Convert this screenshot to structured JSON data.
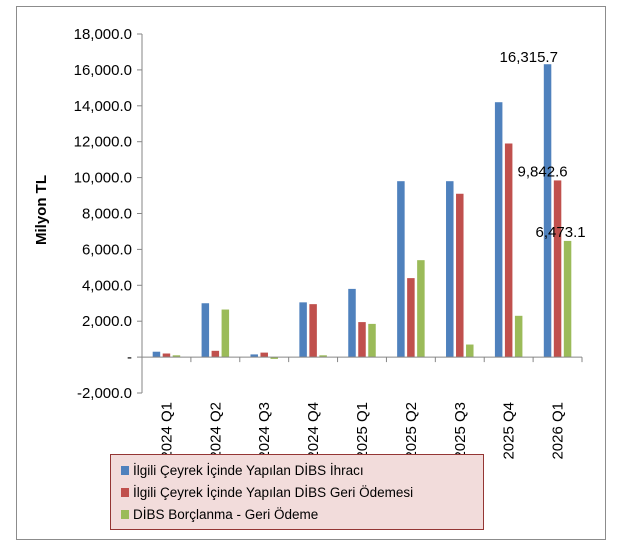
{
  "chart_data": {
    "type": "bar",
    "ylabel": "Milyon TL",
    "ylim": [
      -2000,
      18000
    ],
    "y_ticks": [
      "-2,000.0",
      "-",
      "2,000.0",
      "4,000.0",
      "6,000.0",
      "8,000.0",
      "10,000.0",
      "12,000.0",
      "14,000.0",
      "16,000.0",
      "18,000.0"
    ],
    "categories": [
      "2024 Q1",
      "2024 Q2",
      "2024 Q3",
      "2024 Q4",
      "2025 Q1",
      "2025 Q2",
      "2025 Q3",
      "2025 Q4",
      "2026 Q1"
    ],
    "series": [
      {
        "name": "İlgili Çeyrek İçinde Yapılan DİBS İhracı",
        "color": "#4f81bd",
        "values": [
          300,
          3000,
          150,
          3050,
          3800,
          9800,
          9800,
          14200,
          16315.7
        ]
      },
      {
        "name": "İlgili Çeyrek İçinde Yapılan DİBS Geri Ödemesi",
        "color": "#c0504d",
        "values": [
          200,
          350,
          250,
          2950,
          1950,
          4400,
          9100,
          11900,
          9842.6
        ]
      },
      {
        "name": "DİBS Borçlanma - Geri Ödeme",
        "color": "#9bbb59",
        "values": [
          100,
          2650,
          -100,
          100,
          1850,
          5400,
          700,
          2300,
          6473.1
        ]
      }
    ],
    "data_labels": [
      {
        "series": 0,
        "index": 8,
        "text": "16,315.7"
      },
      {
        "series": 1,
        "index": 8,
        "text": "9,842.6"
      },
      {
        "series": 2,
        "index": 8,
        "text": "6,473.1"
      }
    ],
    "grid": false,
    "legend": "bottom"
  }
}
